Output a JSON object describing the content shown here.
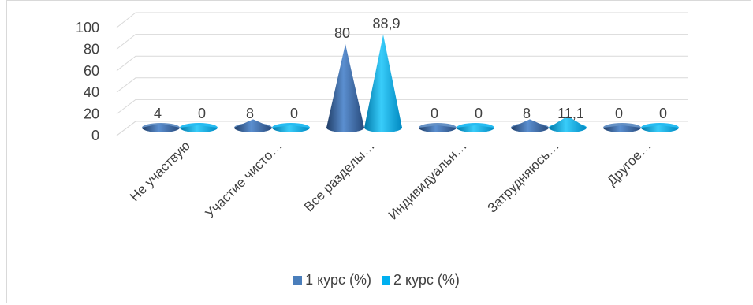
{
  "chart_data": {
    "type": "bar",
    "style": "3d-cone",
    "categories": [
      "Не участвую",
      "Участие чисто…",
      "Все разделы…",
      "Индивидуальн…",
      "Затрудняюсь…",
      "Другое…"
    ],
    "series": [
      {
        "name": "1 курс (%)",
        "values": [
          4,
          8,
          80,
          0,
          8,
          0
        ],
        "labels": [
          "4",
          "8",
          "80",
          "0",
          "8",
          "0"
        ],
        "color": "#4a7ebb"
      },
      {
        "name": "2 курс (%)",
        "values": [
          0,
          0,
          88.9,
          0,
          11.1,
          0
        ],
        "labels": [
          "0",
          "0",
          "88,9",
          "0",
          "11,1",
          "0"
        ],
        "color": "#00b0f0"
      }
    ],
    "yticks": [
      "0",
      "20",
      "40",
      "60",
      "80",
      "100"
    ],
    "ylim": [
      0,
      100
    ],
    "grid": true,
    "legend_position": "bottom"
  }
}
